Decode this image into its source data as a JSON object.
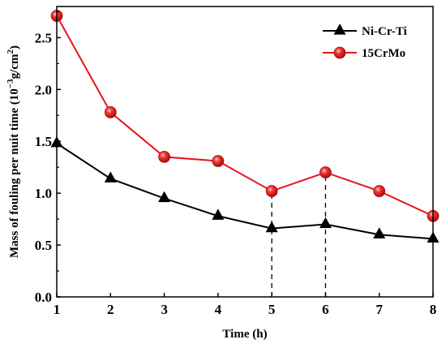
{
  "chart_data": {
    "type": "line",
    "xlabel": "Time (h)",
    "ylabel": "Mass of fouling per nuit time (10",
    "ylabel_sup": "−3",
    "ylabel_tail": "g/cm",
    "ylabel_sup2": "2",
    "ylabel_end": ")",
    "x": [
      1,
      2,
      3,
      4,
      5,
      6,
      7,
      8
    ],
    "xlim": [
      1,
      8
    ],
    "ylim": [
      0.0,
      2.8
    ],
    "xticks": [
      "1",
      "2",
      "3",
      "4",
      "5",
      "6",
      "7",
      "8"
    ],
    "yticks": [
      "0.0",
      "0.5",
      "1.0",
      "1.5",
      "2.0",
      "2.5"
    ],
    "ytick_values": [
      0.0,
      0.5,
      1.0,
      1.5,
      2.0,
      2.5
    ],
    "legend_position": "top-right",
    "grid": false,
    "series": [
      {
        "name": "Ni-Cr-Ti",
        "marker": "triangle",
        "color": "#000000",
        "values": [
          1.48,
          1.14,
          0.95,
          0.78,
          0.66,
          0.7,
          0.6,
          0.56
        ]
      },
      {
        "name": "15CrMo",
        "marker": "sphere",
        "color": "#e8141b",
        "values": [
          2.71,
          1.78,
          1.35,
          1.31,
          1.02,
          1.2,
          1.02,
          0.78
        ]
      }
    ],
    "dashed_markers_x": [
      5,
      6
    ]
  }
}
